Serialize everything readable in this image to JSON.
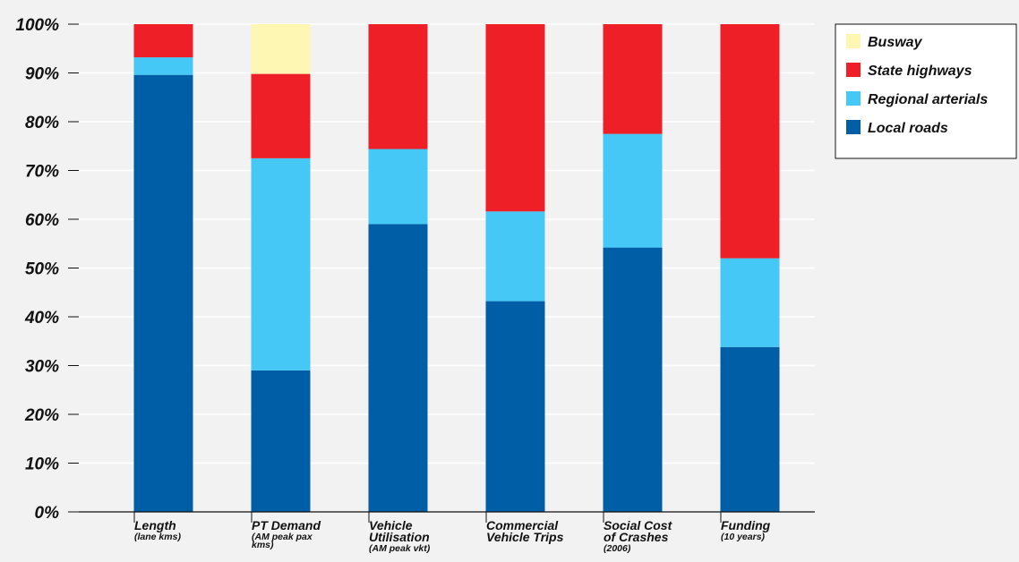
{
  "chart_data": {
    "type": "bar",
    "stacked": true,
    "percent_stacked": true,
    "title": "",
    "xlabel": "",
    "ylabel": "",
    "ylim": [
      0,
      100
    ],
    "y_ticks": [
      "0%",
      "10%",
      "20%",
      "30%",
      "40%",
      "50%",
      "60%",
      "70%",
      "80%",
      "90%",
      "100%"
    ],
    "grid": true,
    "legend_position": "top-right",
    "categories": [
      {
        "label": "Length",
        "sub": [
          "(lane kms)"
        ]
      },
      {
        "label": "PT Demand",
        "sub": [
          "(AM peak pax",
          "kms)"
        ]
      },
      {
        "label": "Vehicle Utilisation",
        "sub": [
          "(AM peak vkt)"
        ]
      },
      {
        "label": "Commercial Vehicle Trips",
        "sub": []
      },
      {
        "label": "Social Cost of Crashes",
        "sub": [
          "(2006)"
        ]
      },
      {
        "label": "Funding",
        "sub": [
          "(10 years)"
        ]
      }
    ],
    "series": [
      {
        "name": "Local roads",
        "color": "#005ea6",
        "values": [
          89.6,
          29.0,
          59.0,
          43.2,
          54.2,
          33.8
        ]
      },
      {
        "name": "Regional arterials",
        "color": "#45c8f5",
        "values": [
          3.6,
          43.5,
          15.4,
          18.4,
          23.3,
          18.2
        ]
      },
      {
        "name": "State highways",
        "color": "#ee1f26",
        "values": [
          6.8,
          17.3,
          25.6,
          38.4,
          22.5,
          48.0
        ]
      },
      {
        "name": "Busway",
        "color": "#fdf7b3",
        "values": [
          0,
          10.2,
          0,
          0,
          0,
          0
        ]
      }
    ]
  }
}
